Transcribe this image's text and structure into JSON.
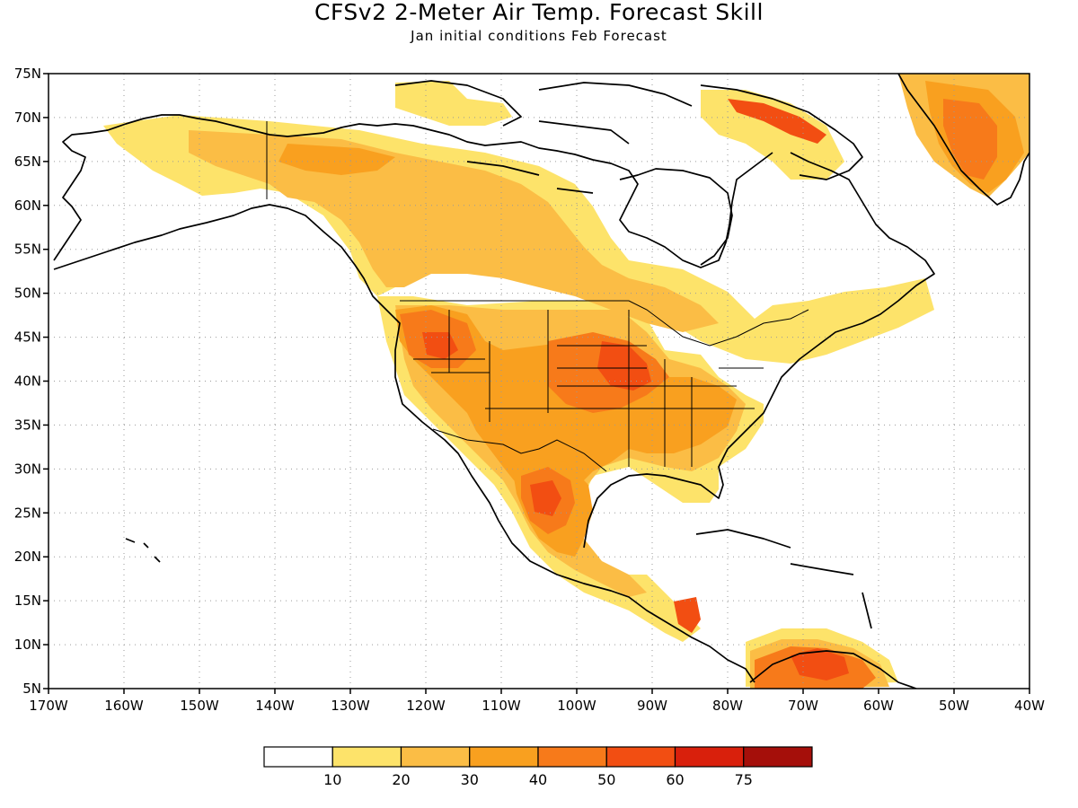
{
  "title": "CFSv2 2-Meter Air Temp. Forecast Skill",
  "subtitle": "Jan initial conditions  Feb Forecast",
  "map": {
    "lat_labels": [
      "75N",
      "70N",
      "65N",
      "60N",
      "55N",
      "50N",
      "45N",
      "40N",
      "35N",
      "30N",
      "25N",
      "20N",
      "15N",
      "10N",
      "5N"
    ],
    "lon_labels": [
      "170W",
      "160W",
      "150W",
      "140W",
      "130W",
      "120W",
      "110W",
      "100W",
      "90W",
      "80W",
      "70W",
      "60W",
      "50W",
      "40W"
    ],
    "extent": {
      "lon": [
        -170,
        -40
      ],
      "lat": [
        5,
        75
      ]
    },
    "gridlines": "dotted"
  },
  "colorbar": {
    "levels": [
      "10",
      "20",
      "30",
      "40",
      "50",
      "60",
      "75"
    ],
    "colors": [
      "#ffffff",
      "#fde36a",
      "#fbbd45",
      "#f9a01f",
      "#f77a1a",
      "#f24e12",
      "#d9200c",
      "#a50f0a"
    ]
  },
  "colors": {
    "skill_10_20": "#fde36a",
    "skill_20_30": "#fbbd45",
    "skill_30_40": "#f9a01f",
    "skill_40_50": "#f77a1a",
    "skill_50_60": "#f24e12",
    "skill_60_75": "#d9200c"
  }
}
